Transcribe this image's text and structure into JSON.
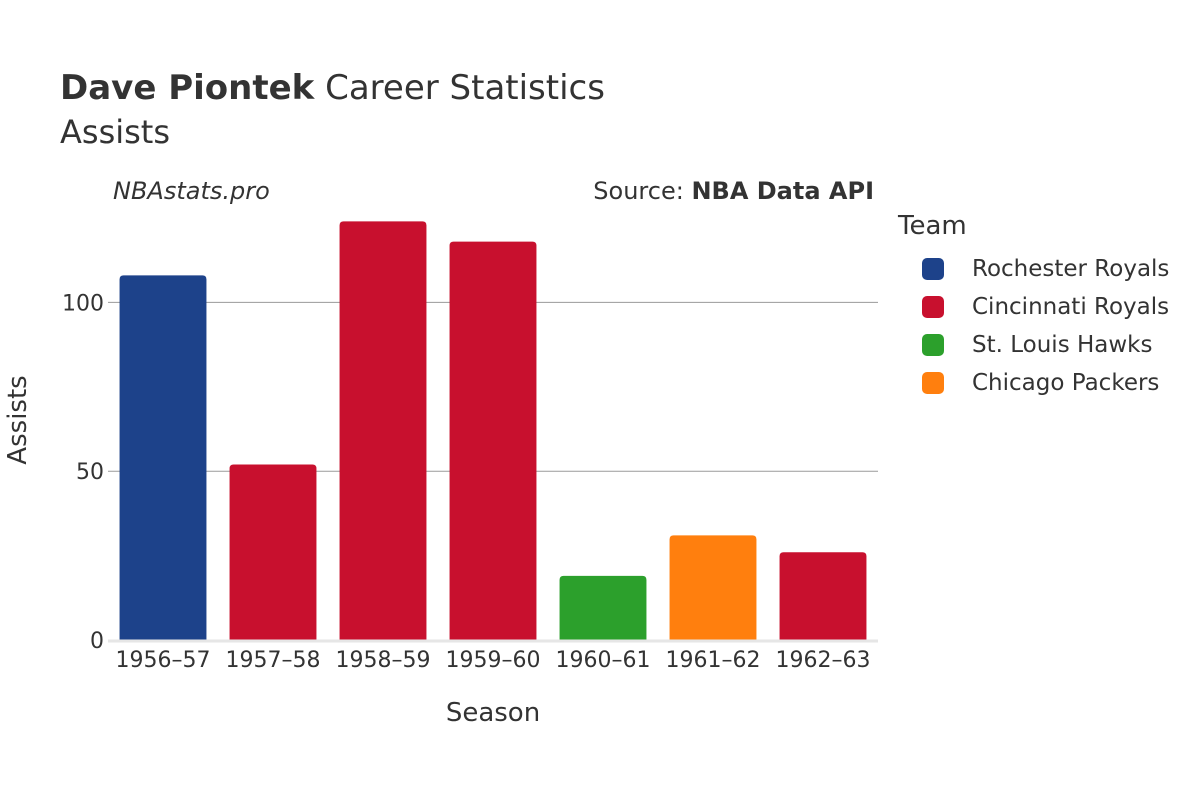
{
  "header": {
    "title_bold": "Dave Piontek",
    "title_rest": " Career Statistics",
    "subtitle": "Assists",
    "watermark": "NBAstats.pro",
    "source_prefix": "Source: ",
    "source_name": "NBA Data API"
  },
  "legend": {
    "title": "Team",
    "items": [
      {
        "label": "Rochester Royals",
        "color": "#1d428a"
      },
      {
        "label": "Cincinnati Royals",
        "color": "#c8102e"
      },
      {
        "label": "St. Louis Hawks",
        "color": "#2ca02c"
      },
      {
        "label": "Chicago Packers",
        "color": "#ff7f0e"
      }
    ]
  },
  "chart_data": {
    "type": "bar",
    "title": "Dave Piontek Career Statistics",
    "subtitle": "Assists",
    "xlabel": "Season",
    "ylabel": "Assists",
    "ylim": [
      0,
      125
    ],
    "yticks": [
      0,
      50,
      100
    ],
    "ytick_labels": [
      "0",
      "50",
      "100"
    ],
    "grid": true,
    "legend_position": "right",
    "categories": [
      "1956–57",
      "1957–58",
      "1958–59",
      "1959–60",
      "1960–61",
      "1961–62",
      "1962–63"
    ],
    "values": [
      108,
      52,
      124,
      118,
      19,
      31,
      26
    ],
    "teams": [
      "Rochester Royals",
      "Cincinnati Royals",
      "Cincinnati Royals",
      "Cincinnati Royals",
      "St. Louis Hawks",
      "Chicago Packers",
      "Cincinnati Royals"
    ],
    "colors": [
      "#1d428a",
      "#c8102e",
      "#c8102e",
      "#c8102e",
      "#2ca02c",
      "#ff7f0e",
      "#c8102e"
    ]
  }
}
